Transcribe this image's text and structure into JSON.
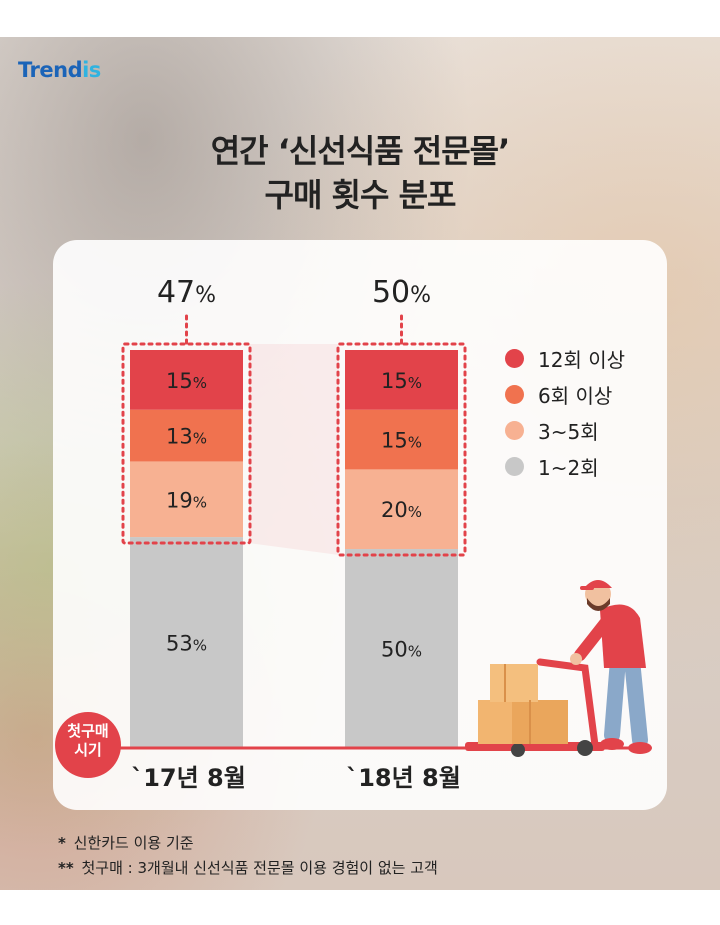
{
  "brand": {
    "logo_text": "Trendis",
    "logo_text_main": "Trend",
    "logo_text_accent": "is"
  },
  "background": {
    "colors": [
      "#e9e2dc",
      "#d9cfc7",
      "#d8c8bd"
    ]
  },
  "chart_data": {
    "type": "bar",
    "stacked": true,
    "title": "연간 ‘신선식품 전문몰’",
    "subtitle": "구매 횟수 분포",
    "categories": [
      "`17년 8월",
      "`18년 8월"
    ],
    "series": [
      {
        "name": "1~2회",
        "color": "#c8c8c8",
        "values": [
          53,
          50
        ]
      },
      {
        "name": "3~5회",
        "color": "#f7b192",
        "values": [
          19,
          20
        ]
      },
      {
        "name": "6회 이상",
        "color": "#f0724f",
        "values": [
          13,
          15
        ]
      },
      {
        "name": "12회 이상",
        "color": "#e2434a",
        "values": [
          15,
          15
        ]
      }
    ],
    "totals_label": [
      "47%",
      "50%"
    ],
    "data_labels": [
      [
        "53%",
        "50%"
      ],
      [
        "19%",
        "20%"
      ],
      [
        "13%",
        "15%"
      ],
      [
        "15%",
        "15%"
      ]
    ],
    "ylim": [
      0,
      100
    ],
    "legend_placement": "right",
    "legend_order": [
      "12회 이상",
      "6회 이상",
      "3~5회",
      "1~2회"
    ],
    "baseline_label": "첫구매\n시기",
    "highlight_color": "#e2434a"
  },
  "notes": [
    {
      "marker": "*",
      "text": "신한카드 이용 기준"
    },
    {
      "marker": "**",
      "text": "첫구매 : 3개월내 신선식품 전문몰 이용 경험이 없는 고객"
    }
  ]
}
